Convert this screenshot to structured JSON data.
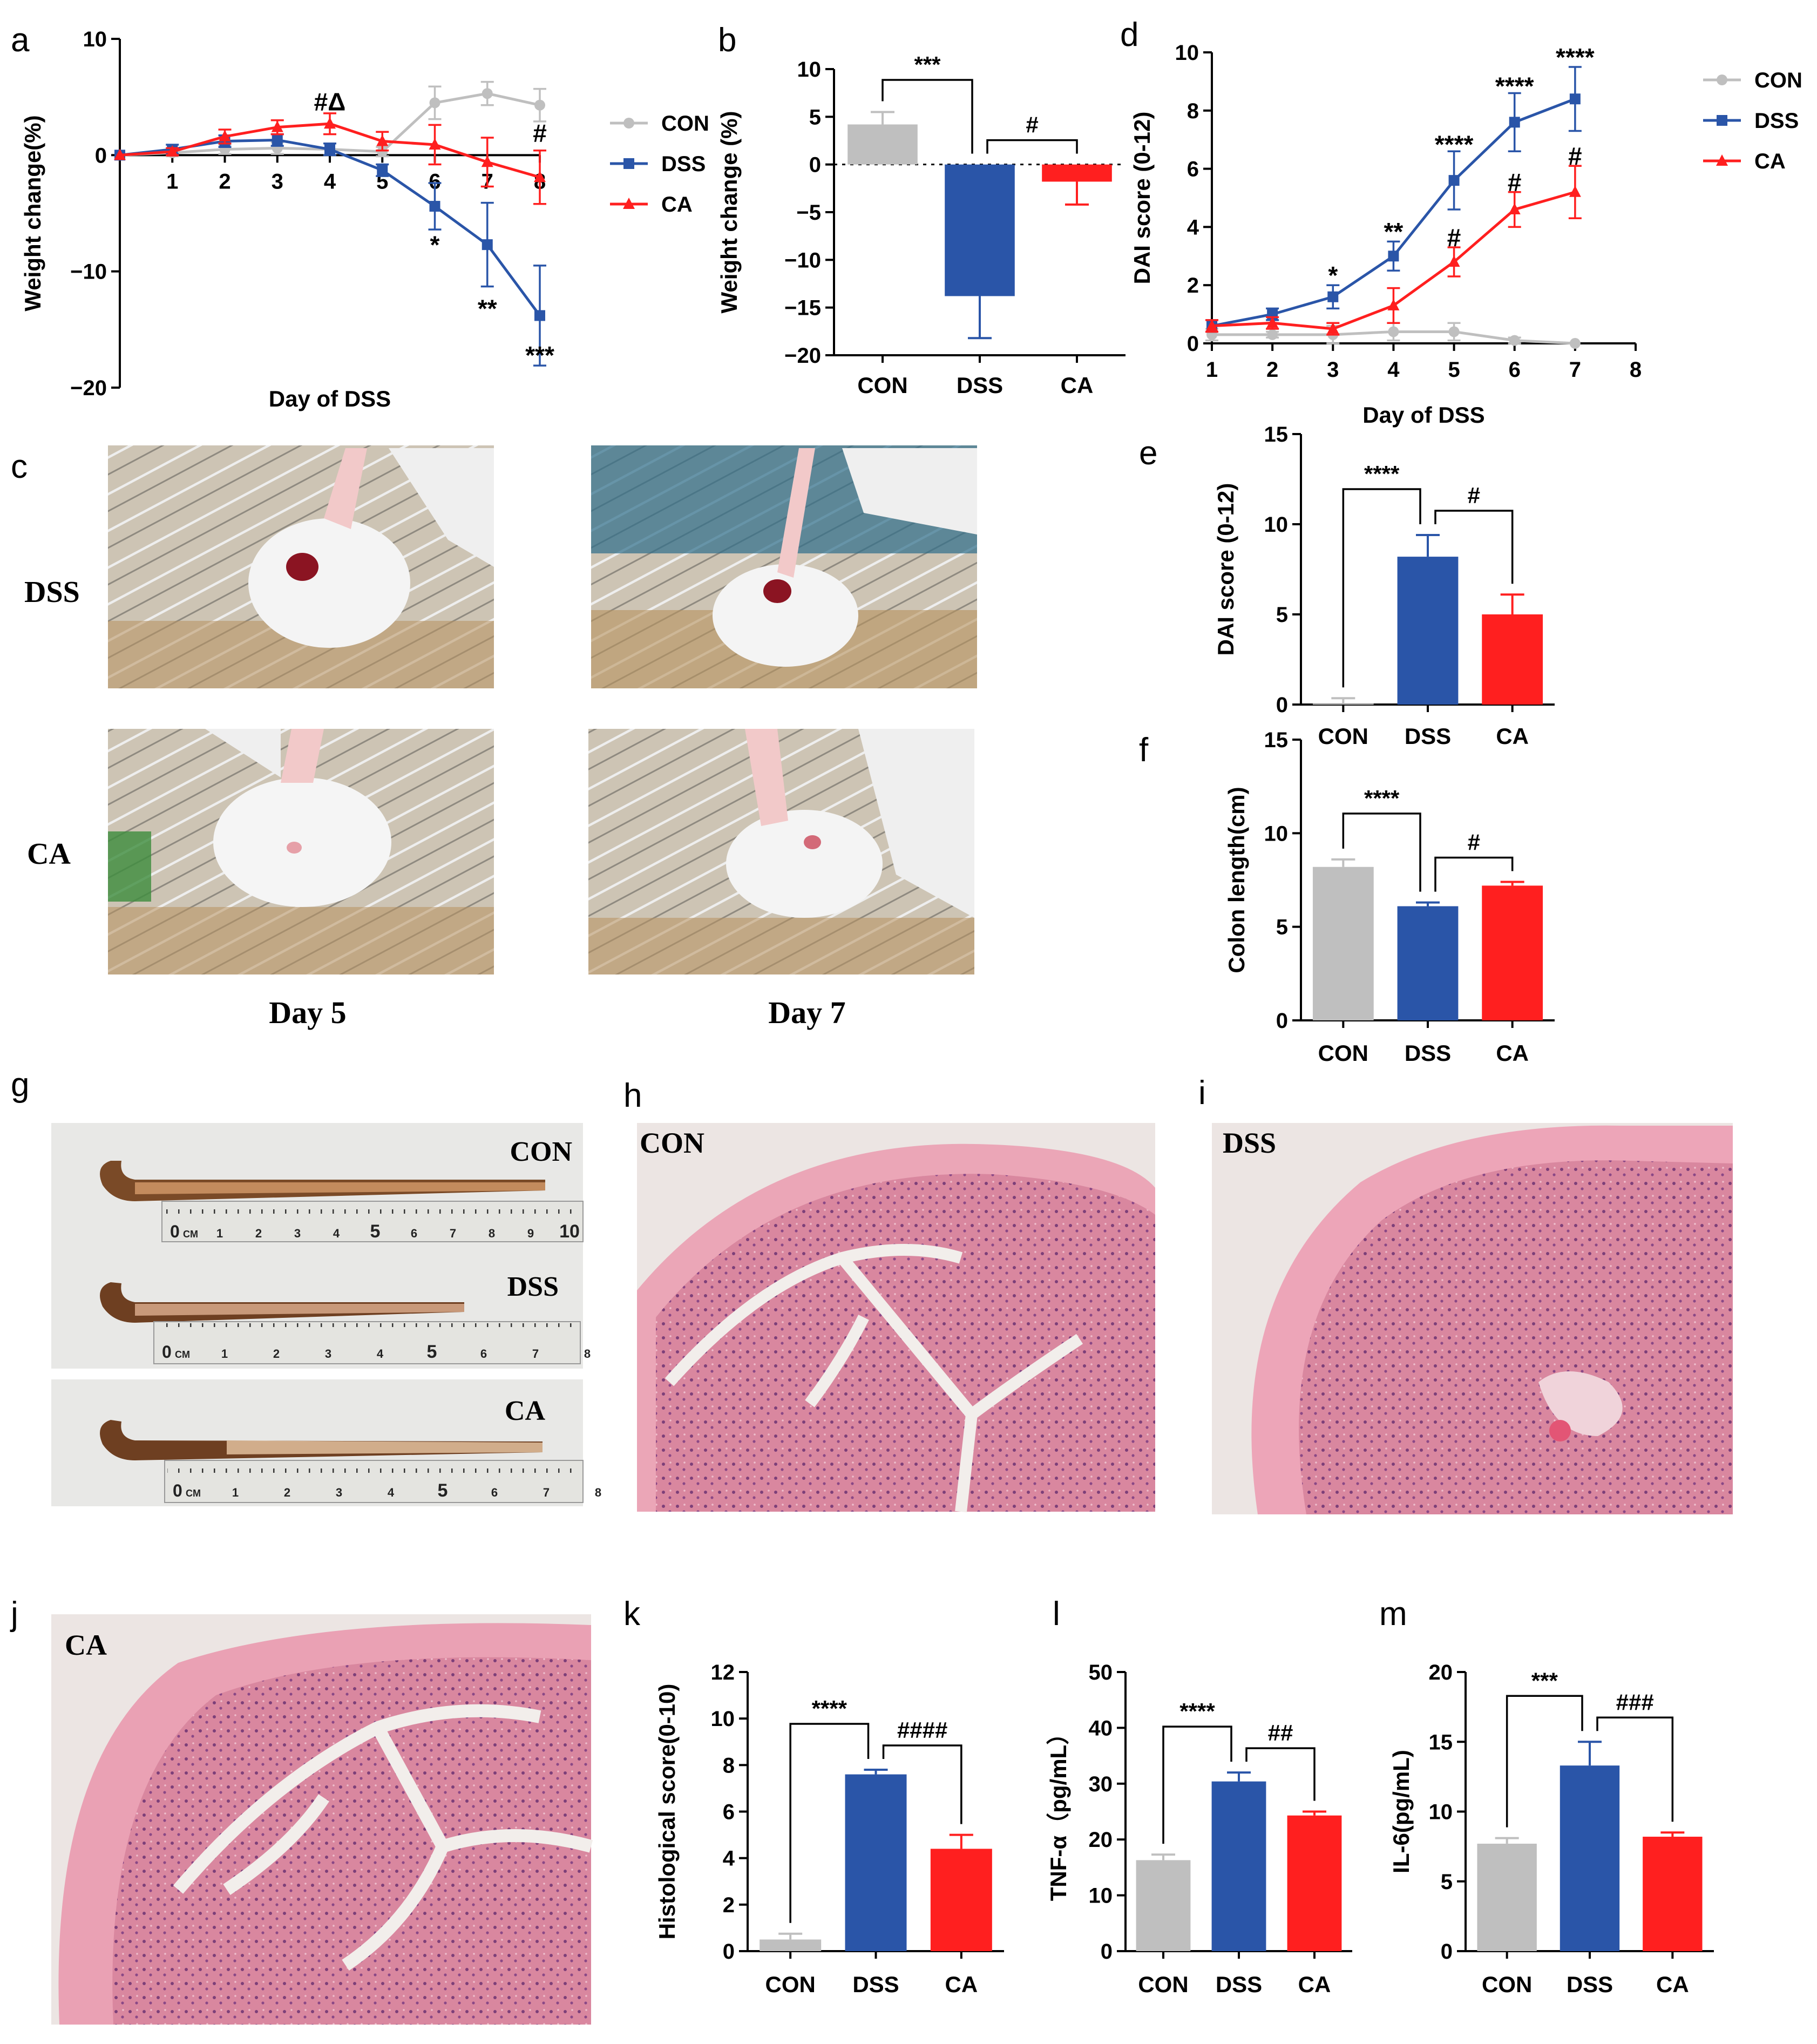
{
  "colors": {
    "con": "#BFBFBF",
    "dss": "#2A55A8",
    "ca": "#FF1F1F",
    "axis": "#000000",
    "photo_bg": "#cfc6b6",
    "tissue": "#e7a2b6",
    "tissue_bg": "#e9e3e1"
  },
  "panels": {
    "a": "a",
    "b": "b",
    "c": "c",
    "d": "d",
    "e": "e",
    "f": "f",
    "g": "g",
    "h": "h",
    "i": "i",
    "j": "j",
    "k": "k",
    "l": "l",
    "m": "m"
  },
  "photos_c": {
    "row_labels": [
      "DSS",
      "CA"
    ],
    "col_labels": [
      "Day 5",
      "Day 7"
    ],
    "icons": [
      "mouse-photo",
      "mouse-photo",
      "mouse-photo",
      "mouse-photo"
    ]
  },
  "photos_g": {
    "labels": [
      "CON",
      "DSS",
      "CA"
    ],
    "ruler_unit": "CM",
    "ruler_start": "0",
    "ruler_numbers": [
      [
        "1",
        "2",
        "3",
        "4",
        "5",
        "6",
        "7",
        "8",
        "9",
        "10"
      ],
      [
        "1",
        "2",
        "3",
        "4",
        "5",
        "6",
        "7",
        "8"
      ],
      [
        "1",
        "2",
        "3",
        "4",
        "5",
        "6",
        "7",
        "8"
      ]
    ],
    "icons": [
      "colon-photo",
      "colon-photo",
      "colon-photo"
    ]
  },
  "histology": {
    "h_label": "CON",
    "i_label": "DSS",
    "j_label": "CA",
    "icon": "he-stain-section"
  },
  "chart_data": [
    {
      "id": "a",
      "type": "line",
      "xlabel": "Day of DSS",
      "ylabel": "Weight change(%)",
      "xlim": [
        0,
        8
      ],
      "ylim": [
        -20,
        10
      ],
      "xticks": [
        "1",
        "2",
        "3",
        "4",
        "5",
        "6",
        "7",
        "8"
      ],
      "yticks": [
        "10",
        "0",
        "−10",
        "−20"
      ],
      "x": [
        0,
        1,
        2,
        3,
        4,
        5,
        6,
        7,
        8
      ],
      "series": [
        {
          "name": "CON",
          "values": [
            0,
            0.2,
            0.5,
            0.6,
            0.5,
            0.3,
            4.5,
            5.3,
            4.3
          ],
          "errors": [
            0,
            0.3,
            0.4,
            0.5,
            0.5,
            0.4,
            1.4,
            1.0,
            1.4
          ]
        },
        {
          "name": "DSS",
          "values": [
            0,
            0.5,
            1.2,
            1.3,
            0.5,
            -1.3,
            -4.4,
            -7.7,
            -13.8
          ],
          "errors": [
            0,
            0.4,
            0.5,
            0.5,
            0.5,
            0.5,
            2.0,
            3.6,
            4.3
          ]
        },
        {
          "name": "CA",
          "values": [
            0,
            0.3,
            1.6,
            2.4,
            2.7,
            1.2,
            0.9,
            -0.6,
            -1.9
          ],
          "errors": [
            0,
            0.3,
            0.6,
            0.6,
            0.9,
            0.8,
            1.7,
            2.1,
            2.3
          ]
        }
      ],
      "annotations": [
        {
          "x": 4,
          "y": 4.5,
          "text": "#Δ"
        },
        {
          "x": 8,
          "y": 1.8,
          "text": "#"
        },
        {
          "x": 6,
          "y": -7.8,
          "text": "*"
        },
        {
          "x": 7,
          "y": -13.3,
          "text": "**"
        },
        {
          "x": 8,
          "y": -17.3,
          "text": "***"
        }
      ],
      "legend": {
        "position": "right",
        "entries": [
          "CON",
          "DSS",
          "CA"
        ]
      }
    },
    {
      "id": "b",
      "type": "bar",
      "ylabel": "Weight change (%)",
      "ylim": [
        -20,
        10
      ],
      "yticks": [
        "10",
        "5",
        "0",
        "−5",
        "−10",
        "−15",
        "−20"
      ],
      "categories": [
        "CON",
        "DSS",
        "CA"
      ],
      "values": [
        4.2,
        -13.8,
        -1.8
      ],
      "errors": [
        1.3,
        4.4,
        2.4
      ],
      "reference_line": 0,
      "significance": [
        {
          "from": 0,
          "to": 1,
          "text": "***"
        },
        {
          "from": 1,
          "to": 2,
          "text": "#"
        }
      ]
    },
    {
      "id": "d",
      "type": "line",
      "xlabel": "Day of DSS",
      "ylabel": "DAI score (0-12)",
      "xlim": [
        1,
        8
      ],
      "ylim": [
        0,
        10
      ],
      "xticks": [
        "1",
        "2",
        "3",
        "4",
        "5",
        "6",
        "7",
        "8"
      ],
      "yticks": [
        "0",
        "2",
        "4",
        "6",
        "8",
        "10"
      ],
      "x": [
        1,
        2,
        3,
        4,
        5,
        6,
        7
      ],
      "series": [
        {
          "name": "CON",
          "values": [
            0.3,
            0.3,
            0.3,
            0.4,
            0.4,
            0.1,
            0.0
          ],
          "errors": [
            0.2,
            0.1,
            0.3,
            0.3,
            0.3,
            0.1,
            0.0
          ]
        },
        {
          "name": "DSS",
          "values": [
            0.6,
            1.0,
            1.6,
            3.0,
            5.6,
            7.6,
            8.4
          ],
          "errors": [
            0.2,
            0.2,
            0.4,
            0.5,
            1.0,
            1.0,
            1.1
          ]
        },
        {
          "name": "CA",
          "values": [
            0.6,
            0.7,
            0.5,
            1.3,
            2.8,
            4.6,
            5.2
          ],
          "errors": [
            0.2,
            0.2,
            0.2,
            0.6,
            0.5,
            0.6,
            0.9
          ]
        }
      ],
      "annotations": [
        {
          "x": 3,
          "y": 2.3,
          "text": "*"
        },
        {
          "x": 4,
          "y": 3.8,
          "text": "**"
        },
        {
          "x": 5,
          "y": 6.8,
          "text": "****"
        },
        {
          "x": 6,
          "y": 8.8,
          "text": "****"
        },
        {
          "x": 7,
          "y": 9.8,
          "text": "****"
        },
        {
          "x": 5,
          "y": 3.6,
          "text": "#"
        },
        {
          "x": 6,
          "y": 5.5,
          "text": "#"
        },
        {
          "x": 7,
          "y": 6.4,
          "text": "#"
        }
      ],
      "legend": {
        "position": "right",
        "entries": [
          "CON",
          "DSS",
          "CA"
        ]
      }
    },
    {
      "id": "e",
      "type": "bar",
      "ylabel": "DAI score (0-12)",
      "ylim": [
        0,
        15
      ],
      "yticks": [
        "0",
        "5",
        "10",
        "15"
      ],
      "categories": [
        "CON",
        "DSS",
        "CA"
      ],
      "values": [
        0.05,
        8.2,
        5.0
      ],
      "errors": [
        0.3,
        1.2,
        1.1
      ],
      "significance": [
        {
          "from": 0,
          "to": 1,
          "text": "****"
        },
        {
          "from": 1,
          "to": 2,
          "text": "#"
        }
      ]
    },
    {
      "id": "f",
      "type": "bar",
      "ylabel": "Colon length(cm)",
      "ylim": [
        0,
        15
      ],
      "yticks": [
        "0",
        "5",
        "10",
        "15"
      ],
      "categories": [
        "CON",
        "DSS",
        "CA"
      ],
      "values": [
        8.2,
        6.1,
        7.2
      ],
      "errors": [
        0.4,
        0.2,
        0.2
      ],
      "significance": [
        {
          "from": 0,
          "to": 1,
          "text": "****"
        },
        {
          "from": 1,
          "to": 2,
          "text": "#"
        }
      ]
    },
    {
      "id": "k",
      "type": "bar",
      "ylabel": "Histological score(0-10)",
      "ylim": [
        0,
        12
      ],
      "yticks": [
        "0",
        "2",
        "4",
        "6",
        "8",
        "10",
        "12"
      ],
      "categories": [
        "CON",
        "DSS",
        "CA"
      ],
      "values": [
        0.5,
        7.6,
        4.4
      ],
      "errors": [
        0.25,
        0.2,
        0.6
      ],
      "significance": [
        {
          "from": 0,
          "to": 1,
          "text": "****"
        },
        {
          "from": 1,
          "to": 2,
          "text": "####"
        }
      ]
    },
    {
      "id": "l",
      "type": "bar",
      "ylabel": "TNF-α（pg/mL）",
      "ylim": [
        0,
        50
      ],
      "yticks": [
        "0",
        "10",
        "20",
        "30",
        "40",
        "50"
      ],
      "categories": [
        "CON",
        "DSS",
        "CA"
      ],
      "values": [
        16.3,
        30.4,
        24.3
      ],
      "errors": [
        1.0,
        1.6,
        0.7
      ],
      "significance": [
        {
          "from": 0,
          "to": 1,
          "text": "****"
        },
        {
          "from": 1,
          "to": 2,
          "text": "##"
        }
      ]
    },
    {
      "id": "m",
      "type": "bar",
      "ylabel": "IL-6(pg/mL)",
      "ylim": [
        0,
        20
      ],
      "yticks": [
        "0",
        "5",
        "10",
        "15",
        "20"
      ],
      "categories": [
        "CON",
        "DSS",
        "CA"
      ],
      "values": [
        7.7,
        13.3,
        8.2
      ],
      "errors": [
        0.4,
        1.7,
        0.3
      ],
      "significance": [
        {
          "from": 0,
          "to": 1,
          "text": "***"
        },
        {
          "from": 1,
          "to": 2,
          "text": "###"
        }
      ]
    }
  ]
}
